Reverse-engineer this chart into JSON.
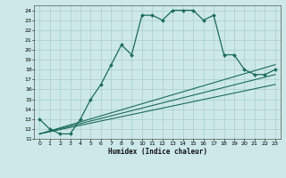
{
  "title": "",
  "xlabel": "Humidex (Indice chaleur)",
  "ylabel": "",
  "bg_color": "#cce8e8",
  "grid_color": "#aacccc",
  "line_color": "#1a6b5a",
  "xlim": [
    -0.5,
    23.5
  ],
  "ylim": [
    11,
    24.5
  ],
  "xticks": [
    0,
    1,
    2,
    3,
    4,
    5,
    6,
    7,
    8,
    9,
    10,
    11,
    12,
    13,
    14,
    15,
    16,
    17,
    18,
    19,
    20,
    21,
    22,
    23
  ],
  "yticks": [
    11,
    12,
    13,
    14,
    15,
    16,
    17,
    18,
    19,
    20,
    21,
    22,
    23,
    24
  ],
  "series": [
    {
      "x": [
        0,
        1,
        2,
        3,
        4,
        5,
        6,
        7,
        8,
        9,
        10,
        11,
        12,
        13,
        14,
        15,
        16,
        17,
        18,
        19,
        20,
        21,
        22,
        23
      ],
      "y": [
        13,
        12,
        11.5,
        11.5,
        13,
        15,
        16.5,
        18.5,
        20.5,
        19.5,
        23.5,
        23.5,
        23,
        24,
        24,
        24,
        23,
        23.5,
        19.5,
        19.5,
        18,
        17.5,
        17.5,
        18
      ],
      "marker": "D",
      "ms": 2.0,
      "lw": 0.9
    },
    {
      "x": [
        0,
        23
      ],
      "y": [
        11.5,
        18.5
      ],
      "marker": null,
      "ms": 0,
      "lw": 0.8
    },
    {
      "x": [
        0,
        23
      ],
      "y": [
        11.5,
        17.5
      ],
      "marker": null,
      "ms": 0,
      "lw": 0.8
    },
    {
      "x": [
        0,
        23
      ],
      "y": [
        11.5,
        16.5
      ],
      "marker": null,
      "ms": 0,
      "lw": 0.8
    }
  ]
}
